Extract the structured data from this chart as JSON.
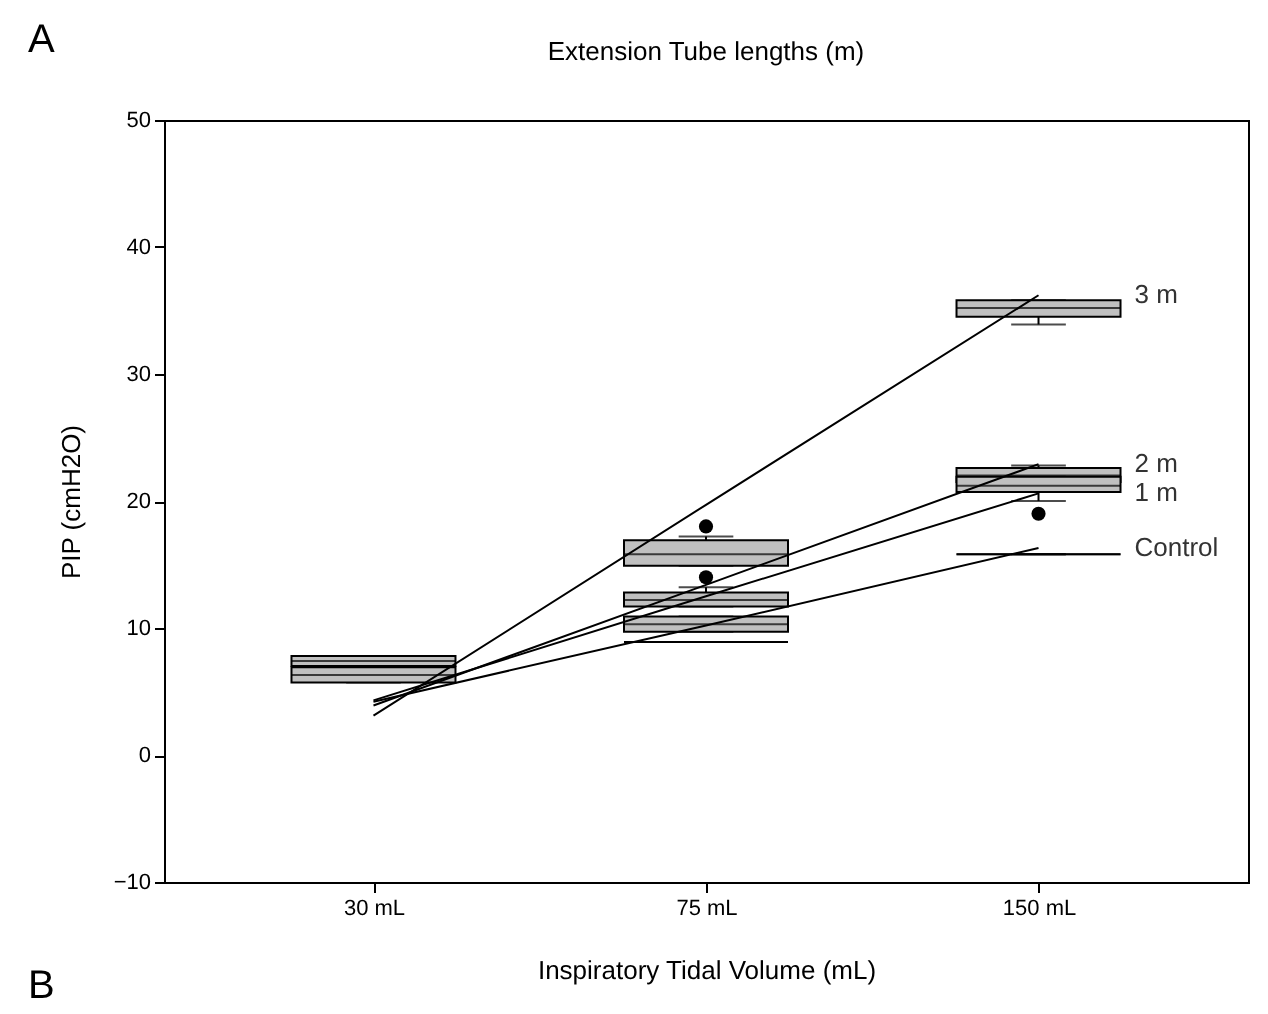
{
  "chart_data": {
    "type": "box",
    "title": "Extension Tube lengths (m)",
    "xlabel": "Inspiratory Tidal Volume (mL)",
    "ylabel": "PIP (cmH2O)",
    "annotations": [
      "A",
      "B"
    ],
    "categories": [
      "30 mL",
      "75 mL",
      "150 mL"
    ],
    "ylim": [
      -10,
      50
    ],
    "yticks": [
      -10,
      0,
      10,
      20,
      30,
      40,
      50
    ],
    "grid": false,
    "series": [
      {
        "color": "#c0c0c0",
        "boxes": [
          {
            "low": 7.0,
            "q1": 7.0,
            "median": 7.4,
            "q3": 7.8,
            "high": 7.8
          },
          {
            "low": 14.9,
            "q1": 14.9,
            "median": 15.8,
            "q3": 16.9,
            "high": 17.2,
            "outliers": [
              18.0
            ]
          },
          {
            "low": 33.9,
            "q1": 34.5,
            "median": 35.2,
            "q3": 35.8,
            "high": 35.8
          }
        ]
      },
      {
        "color": "#c0c0c0",
        "boxes": [
          {
            "low": 5.7,
            "q1": 5.7,
            "median": 6.3,
            "q3": 6.9,
            "high": 6.9
          },
          {
            "low": 11.7,
            "q1": 11.7,
            "median": 12.2,
            "q3": 12.8,
            "high": 13.2,
            "outliers": [
              14.0
            ]
          },
          {
            "low": 21.0,
            "q1": 21.5,
            "median": 22.0,
            "q3": 22.6,
            "high": 22.8
          }
        ]
      },
      {
        "color": "#c0c0c0",
        "boxes": [
          null,
          {
            "low": 9.7,
            "q1": 9.7,
            "median": 10.3,
            "q3": 10.9,
            "high": 10.9
          },
          {
            "low": 20.0,
            "q1": 20.7,
            "median": 21.2,
            "q3": 21.9,
            "high": 21.9,
            "outliers": [
              19.0
            ]
          }
        ]
      },
      {
        "color": "#000000",
        "boxes": [
          null,
          {
            "low": 8.9,
            "q1": 8.9,
            "median": 8.9,
            "q3": 8.9,
            "high": 8.9
          },
          {
            "low": 15.8,
            "q1": 15.8,
            "median": 15.8,
            "q3": 15.8,
            "high": 15.8
          }
        ]
      },
      {
        "type": "line",
        "name": "3 m",
        "color": "#000000",
        "values": [
          3.1,
          19.7,
          36.2
        ]
      },
      {
        "type": "line",
        "name": "2 m",
        "color": "#000000",
        "values": [
          3.9,
          13.4,
          22.9
        ]
      },
      {
        "type": "line",
        "name": "1 m",
        "color": "#000000",
        "values": [
          4.3,
          12.5,
          20.6
        ]
      },
      {
        "type": "line",
        "name": "Control",
        "color": "#000000",
        "values": [
          4.2,
          10.2,
          16.3
        ]
      }
    ]
  }
}
